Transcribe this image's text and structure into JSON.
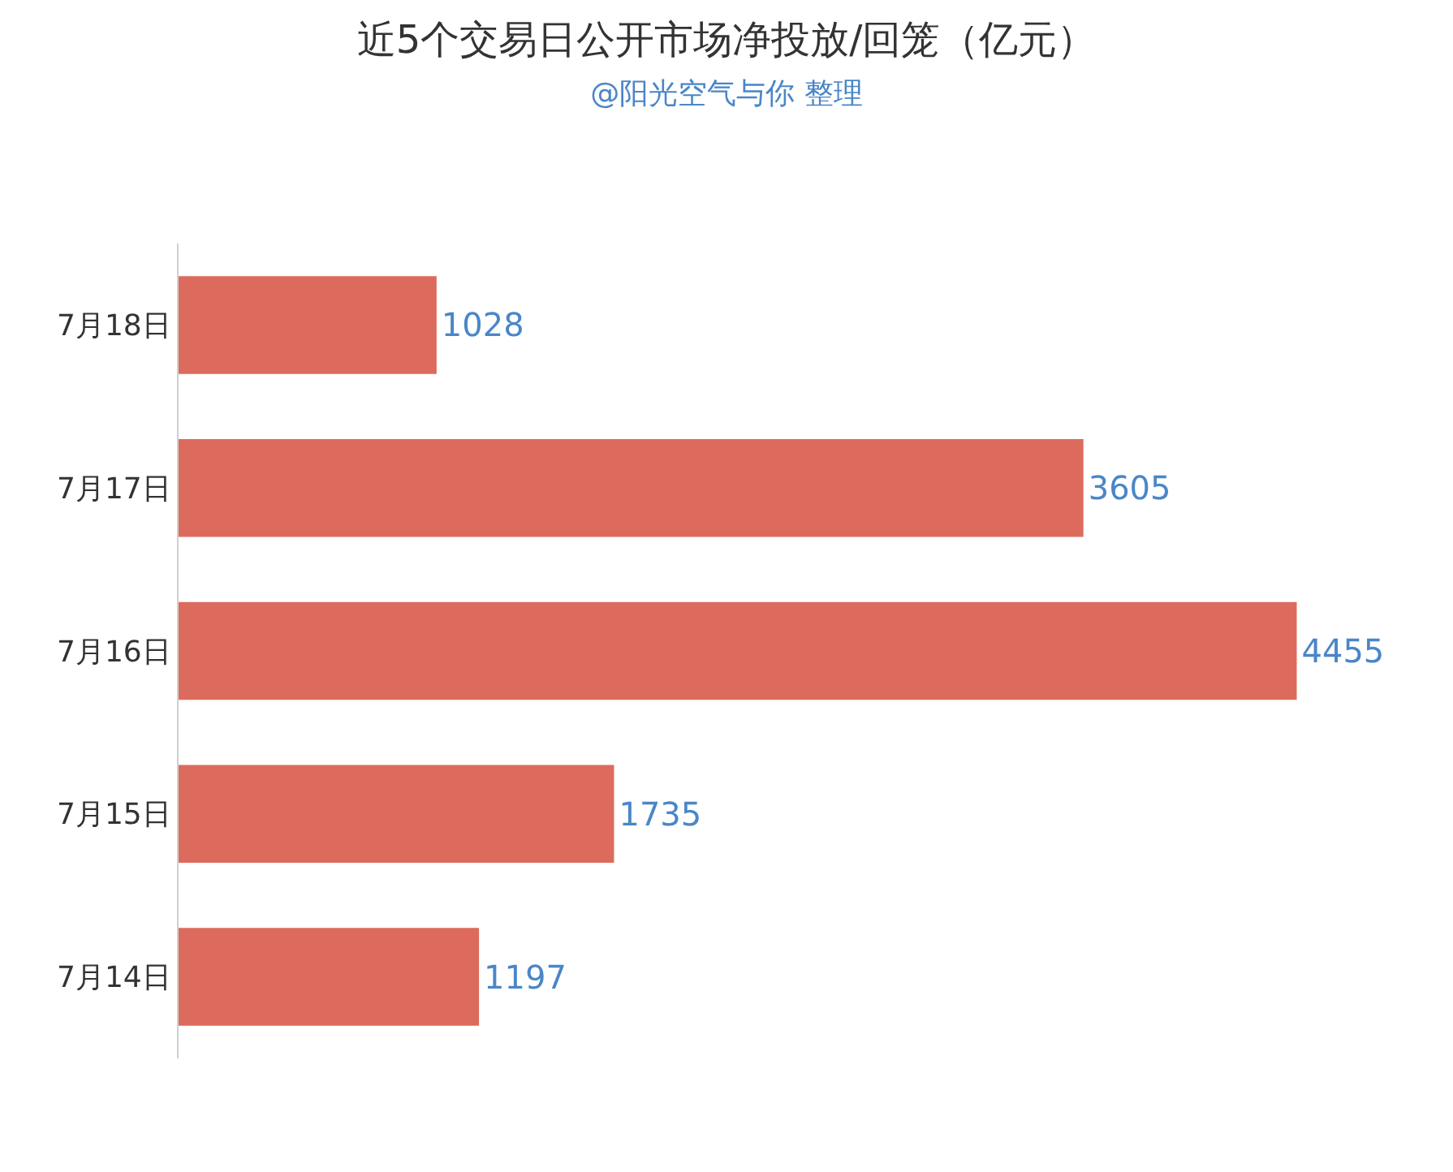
{
  "chart_data": {
    "type": "bar",
    "title": "近5个交易日公开市场净投放/回笼（亿元）",
    "subtitle": "@阳光空气与你 整理",
    "orientation": "horizontal",
    "categories": [
      "7月18日",
      "7月17日",
      "7月16日",
      "7月15日",
      "7月14日"
    ],
    "values": [
      1028,
      3605,
      4455,
      1735,
      1197
    ],
    "color": "#dd6b5d",
    "data_labels": true,
    "tick_labels": "y"
  }
}
